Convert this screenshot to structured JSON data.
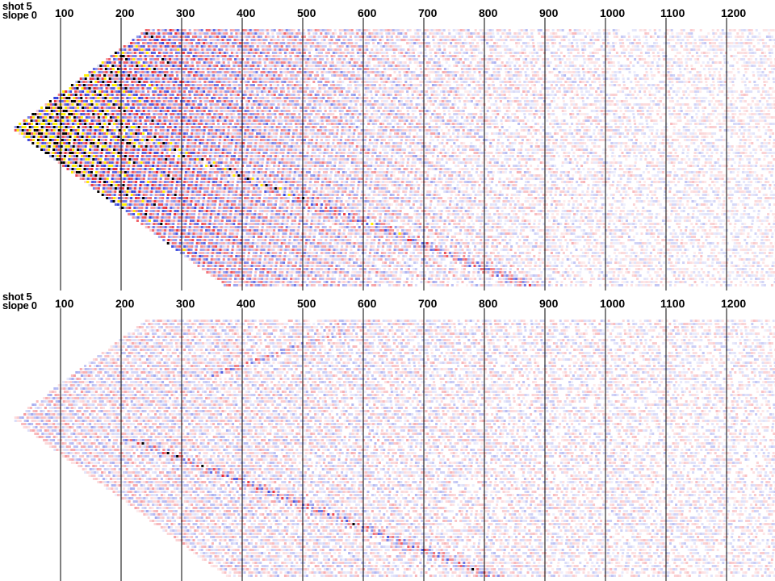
{
  "panels": [
    {
      "label_line1": "shot 5",
      "label_line2": "slope 0",
      "ticks": [
        "100",
        "200",
        "300",
        "400",
        "500",
        "600",
        "700",
        "800",
        "900",
        "1000",
        "1100",
        "1200"
      ]
    },
    {
      "label_line1": "shot 5",
      "label_line2": "slope 0",
      "ticks": [
        "100",
        "200",
        "300",
        "400",
        "500",
        "600",
        "700",
        "800",
        "900",
        "1000",
        "1100",
        "1200"
      ]
    }
  ],
  "colors": {
    "positive": "#e8101a",
    "negative": "#1a2ad8",
    "strong_positive": "#ffee00",
    "strong_negative": "#000000",
    "background": "#ffffff"
  }
}
